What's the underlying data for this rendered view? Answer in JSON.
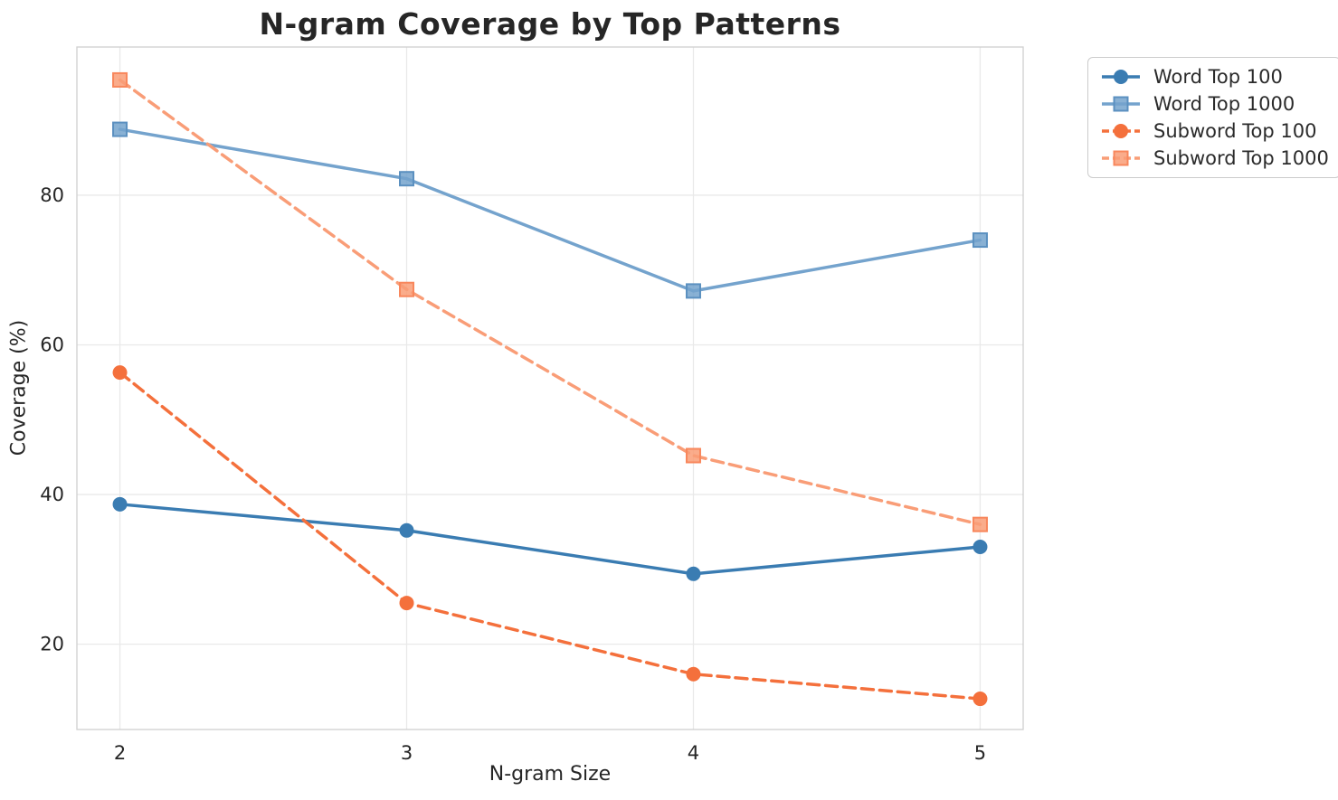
{
  "chart_data": {
    "type": "line",
    "title": "N-gram Coverage by Top Patterns",
    "xlabel": "N-gram Size",
    "ylabel": "Coverage (%)",
    "x": [
      2,
      3,
      4,
      5
    ],
    "xticks": [
      2,
      3,
      4,
      5
    ],
    "yticks": [
      20,
      40,
      60,
      80
    ],
    "xlim": [
      1.85,
      5.15
    ],
    "ylim": [
      8.6,
      99.8
    ],
    "grid": true,
    "grid_color": "#e9e9e9",
    "spine_color": "#cfcfcf",
    "text_color": "#262626",
    "legend_position": "outside upper right",
    "series": [
      {
        "name": "Word Top 100",
        "values": [
          38.7,
          35.2,
          29.4,
          33.0
        ],
        "color": "#3a7cb2",
        "line_style": "solid",
        "marker": "circle"
      },
      {
        "name": "Word Top 1000",
        "values": [
          88.8,
          82.2,
          67.2,
          74.0
        ],
        "color": "#74a3cd",
        "marker_edge": "#5b90c0",
        "line_style": "solid",
        "marker": "square"
      },
      {
        "name": "Subword Top 100",
        "values": [
          56.3,
          25.5,
          16.0,
          12.7
        ],
        "color": "#f4703c",
        "line_style": "dashed",
        "marker": "circle"
      },
      {
        "name": "Subword Top 1000",
        "values": [
          95.4,
          67.4,
          45.2,
          36.0
        ],
        "color": "#f99d77",
        "marker_edge": "#f8875c",
        "line_style": "dashed",
        "marker": "square"
      }
    ]
  }
}
